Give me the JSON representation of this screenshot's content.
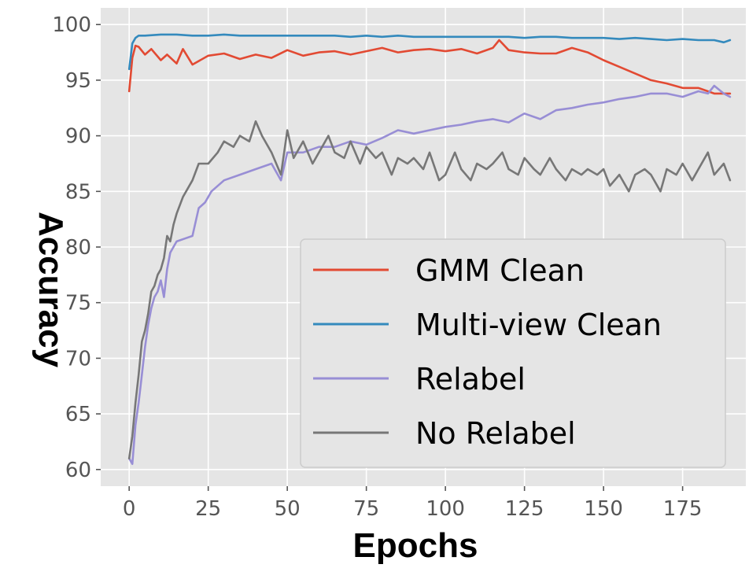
{
  "chart_data": {
    "type": "line",
    "title": "",
    "xlabel": "Epochs",
    "ylabel": "Accuracy",
    "xlim": [
      -9,
      195
    ],
    "ylim": [
      58.5,
      101.5
    ],
    "x_ticks": [
      0,
      25,
      50,
      75,
      100,
      125,
      150,
      175
    ],
    "y_ticks": [
      60,
      65,
      70,
      75,
      80,
      85,
      90,
      95,
      100
    ],
    "grid": true,
    "legend_position": "lower-right",
    "series": [
      {
        "name": "GMM Clean",
        "color": "#E24A33",
        "x": [
          0,
          1,
          2,
          3,
          5,
          7,
          10,
          12,
          15,
          17,
          20,
          25,
          30,
          35,
          40,
          45,
          50,
          55,
          60,
          65,
          70,
          75,
          80,
          85,
          90,
          95,
          100,
          105,
          110,
          115,
          117,
          120,
          125,
          130,
          135,
          140,
          145,
          150,
          155,
          160,
          165,
          170,
          175,
          180,
          185,
          190
        ],
        "y": [
          94.0,
          97.0,
          98.1,
          98.0,
          97.3,
          97.8,
          96.8,
          97.3,
          96.5,
          97.8,
          96.4,
          97.2,
          97.4,
          96.9,
          97.3,
          97.0,
          97.7,
          97.2,
          97.5,
          97.6,
          97.3,
          97.6,
          97.9,
          97.5,
          97.7,
          97.8,
          97.6,
          97.8,
          97.4,
          97.9,
          98.6,
          97.7,
          97.5,
          97.4,
          97.4,
          97.9,
          97.5,
          96.8,
          96.2,
          95.6,
          95.0,
          94.7,
          94.3,
          94.3,
          93.8,
          93.8
        ]
      },
      {
        "name": "Multi-view Clean",
        "color": "#348ABD",
        "x": [
          0,
          1,
          2,
          3,
          5,
          10,
          15,
          20,
          25,
          30,
          35,
          40,
          45,
          50,
          55,
          60,
          65,
          70,
          75,
          80,
          85,
          90,
          95,
          100,
          105,
          110,
          115,
          120,
          125,
          130,
          135,
          140,
          145,
          150,
          155,
          160,
          165,
          170,
          175,
          180,
          185,
          188,
          190
        ],
        "y": [
          96.0,
          98.3,
          98.8,
          99.0,
          99.0,
          99.1,
          99.1,
          99.0,
          99.0,
          99.1,
          99.0,
          99.0,
          99.0,
          99.0,
          99.0,
          99.0,
          99.0,
          98.9,
          99.0,
          98.9,
          99.0,
          98.9,
          98.9,
          98.9,
          98.9,
          98.9,
          98.9,
          98.9,
          98.8,
          98.9,
          98.9,
          98.8,
          98.8,
          98.8,
          98.7,
          98.8,
          98.7,
          98.6,
          98.7,
          98.6,
          98.6,
          98.4,
          98.6
        ]
      },
      {
        "name": "Relabel",
        "color": "#988ED5",
        "x": [
          0,
          1,
          2,
          3,
          4,
          5,
          6,
          7,
          8,
          9,
          10,
          11,
          12,
          13,
          15,
          18,
          20,
          22,
          24,
          26,
          30,
          35,
          40,
          45,
          48,
          50,
          55,
          60,
          65,
          70,
          75,
          80,
          85,
          90,
          95,
          100,
          105,
          110,
          115,
          120,
          125,
          130,
          135,
          140,
          145,
          150,
          155,
          160,
          165,
          170,
          175,
          180,
          183,
          185,
          188,
          190
        ],
        "y": [
          61.0,
          60.5,
          64.0,
          66.0,
          68.5,
          71.0,
          73.0,
          74.5,
          75.5,
          76.0,
          77.0,
          75.5,
          78.0,
          79.5,
          80.5,
          80.8,
          81.0,
          83.5,
          84.0,
          85.0,
          86.0,
          86.5,
          87.0,
          87.5,
          86.0,
          88.5,
          88.5,
          89.0,
          89.0,
          89.5,
          89.2,
          89.8,
          90.5,
          90.2,
          90.5,
          90.8,
          91.0,
          91.3,
          91.5,
          91.2,
          92.0,
          91.5,
          92.3,
          92.5,
          92.8,
          93.0,
          93.3,
          93.5,
          93.8,
          93.8,
          93.5,
          94.0,
          93.8,
          94.5,
          93.8,
          93.5
        ]
      },
      {
        "name": "No Relabel",
        "color": "#777777",
        "x": [
          0,
          1,
          2,
          3,
          4,
          5,
          6,
          7,
          8,
          9,
          10,
          11,
          12,
          13,
          14,
          15,
          17,
          20,
          22,
          25,
          28,
          30,
          33,
          35,
          38,
          40,
          42,
          45,
          48,
          50,
          52,
          55,
          58,
          60,
          63,
          65,
          68,
          70,
          73,
          75,
          78,
          80,
          83,
          85,
          88,
          90,
          93,
          95,
          98,
          100,
          103,
          105,
          108,
          110,
          113,
          115,
          118,
          120,
          123,
          125,
          128,
          130,
          133,
          135,
          138,
          140,
          143,
          145,
          148,
          150,
          152,
          155,
          158,
          160,
          163,
          165,
          168,
          170,
          173,
          175,
          178,
          180,
          183,
          185,
          188,
          190
        ],
        "y": [
          61.0,
          63.0,
          66.0,
          68.5,
          71.5,
          72.5,
          74.0,
          76.0,
          76.5,
          77.5,
          78.0,
          79.0,
          81.0,
          80.5,
          82.0,
          83.0,
          84.5,
          86.0,
          87.5,
          87.5,
          88.5,
          89.5,
          89.0,
          90.0,
          89.5,
          91.3,
          90.0,
          88.5,
          86.5,
          90.5,
          88.0,
          89.5,
          87.5,
          88.5,
          90.0,
          88.5,
          88.0,
          89.5,
          87.5,
          89.0,
          88.0,
          88.5,
          86.5,
          88.0,
          87.5,
          88.0,
          87.0,
          88.5,
          86.0,
          86.5,
          88.5,
          87.0,
          86.0,
          87.5,
          87.0,
          87.5,
          88.5,
          87.0,
          86.5,
          88.0,
          87.0,
          86.5,
          88.0,
          87.0,
          86.0,
          87.0,
          86.5,
          87.0,
          86.5,
          87.0,
          85.5,
          86.5,
          85.0,
          86.5,
          87.0,
          86.5,
          85.0,
          87.0,
          86.5,
          87.5,
          86.0,
          87.0,
          88.5,
          86.5,
          87.5,
          86.0
        ]
      }
    ]
  }
}
